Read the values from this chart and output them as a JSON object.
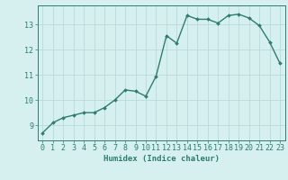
{
  "x": [
    0,
    1,
    2,
    3,
    4,
    5,
    6,
    7,
    8,
    9,
    10,
    11,
    12,
    13,
    14,
    15,
    16,
    17,
    18,
    19,
    20,
    21,
    22,
    23
  ],
  "y": [
    8.7,
    9.1,
    9.3,
    9.4,
    9.5,
    9.5,
    9.7,
    10.0,
    10.4,
    10.35,
    10.15,
    10.95,
    12.55,
    12.25,
    13.35,
    13.2,
    13.2,
    13.05,
    13.35,
    13.4,
    13.25,
    12.95,
    12.3,
    11.45
  ],
  "line_color": "#2e7d6e",
  "marker": "D",
  "markersize": 2.0,
  "linewidth": 1.0,
  "bg_color": "#d6f0ef",
  "grid_color": "#b8dbd9",
  "axis_color": "#2e7d6e",
  "xlabel": "Humidex (Indice chaleur)",
  "xlabel_fontsize": 6.5,
  "tick_fontsize": 6.0,
  "yticks": [
    9,
    10,
    11,
    12,
    13
  ],
  "xticks": [
    0,
    1,
    2,
    3,
    4,
    5,
    6,
    7,
    8,
    9,
    10,
    11,
    12,
    13,
    14,
    15,
    16,
    17,
    18,
    19,
    20,
    21,
    22,
    23
  ],
  "ylim": [
    8.4,
    13.75
  ],
  "xlim": [
    -0.5,
    23.5
  ]
}
